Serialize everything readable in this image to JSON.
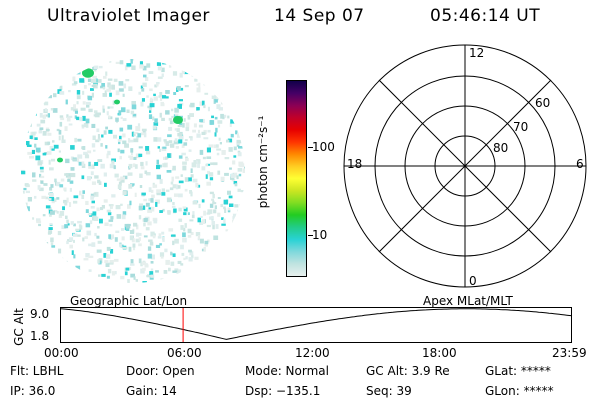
{
  "header": {
    "title": "Ultraviolet Imager",
    "date": "14 Sep 07",
    "time": "05:46:14 UT"
  },
  "colorbar": {
    "label": "photon cm⁻²s⁻¹",
    "ticks": [
      "100",
      "10"
    ],
    "colors": [
      "#e8f0ee",
      "#bfe3e0",
      "#7fd8dc",
      "#28d2d4",
      "#22cc88",
      "#22cc22",
      "#7fdd22",
      "#cce622",
      "#ffff33",
      "#ffcc22",
      "#ff8800",
      "#ff3300",
      "#e60000",
      "#c0002a",
      "#8a0055",
      "#440066",
      "#11004a"
    ]
  },
  "polar": {
    "lat_labels": [
      "60",
      "70",
      "80"
    ],
    "mlt_labels": {
      "top": "12",
      "right": "6",
      "bottom": "0",
      "left": "18"
    }
  },
  "timeline": {
    "left_title": "Geographic Lat/Lon",
    "right_title": "Apex MLat/MLT",
    "ylabel": "GC Alt",
    "y_ticks": [
      "9.0",
      "1.8"
    ],
    "x_ticks": [
      "00:00",
      "06:00",
      "12:00",
      "18:00",
      "23:59"
    ],
    "current_time_hours": 5.77,
    "cursor_color": "#ff0000"
  },
  "info": {
    "flt": "Flt: LBHL",
    "ip": "IP: 36.0",
    "door": "Door: Open",
    "gain": "Gain: 14",
    "mode": "Mode: Normal",
    "dsp": "Dsp: −135.1",
    "gcalt": "GC Alt: 3.9 Re",
    "seq": "Seq: 39",
    "glat": "GLat: *****",
    "glon": "GLon: *****"
  }
}
